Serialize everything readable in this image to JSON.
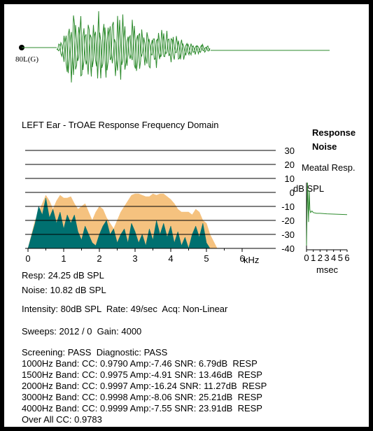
{
  "waveform": {
    "channel_label": "80L(G)",
    "response_color": "#2e8b2e",
    "noise_color": "#2e8b2e"
  },
  "title": "LEFT Ear - TrOAE Response Frequency Domain",
  "legend": {
    "response": "Response",
    "noise": "Noise",
    "response_color": "#f5c27f",
    "noise_color": "#007070"
  },
  "chart_data": [
    {
      "type": "area",
      "title": "LEFT Ear - TrOAE Response Frequency Domain",
      "xlabel": "kHz",
      "ylabel": "dB SPL",
      "xlim": [
        0,
        6
      ],
      "ylim": [
        -40,
        30
      ],
      "x_ticks": [
        "0",
        "1",
        "2",
        "3",
        "4",
        "5",
        "6"
      ],
      "y_ticks": [
        "30",
        "20",
        "10",
        "0",
        "-10",
        "-20",
        "-30",
        "-40"
      ],
      "y_axis_unit_label": "dB SPL",
      "x_axis_unit_label": "kHz",
      "legend_position": "top-right",
      "grid": true,
      "series": [
        {
          "name": "Response",
          "color": "#f5c27f",
          "x": [
            0.0,
            0.2,
            0.4,
            0.5,
            0.6,
            0.7,
            0.8,
            0.9,
            1.0,
            1.1,
            1.2,
            1.3,
            1.4,
            1.5,
            1.6,
            1.7,
            1.8,
            1.9,
            2.0,
            2.1,
            2.2,
            2.3,
            2.4,
            2.5,
            2.6,
            2.7,
            2.8,
            2.9,
            3.0,
            3.1,
            3.2,
            3.3,
            3.4,
            3.5,
            3.6,
            3.7,
            3.8,
            3.9,
            4.0,
            4.1,
            4.2,
            4.3,
            4.4,
            4.5,
            4.6,
            4.7,
            4.8,
            4.9,
            5.0,
            5.1,
            5.3
          ],
          "values": [
            -40,
            -20,
            -8,
            -2,
            -6,
            -12,
            -6,
            -2,
            -4,
            -4,
            -3,
            -8,
            -12,
            -10,
            -8,
            -14,
            -20,
            -14,
            -10,
            -12,
            -18,
            -22,
            -26,
            -20,
            -14,
            -10,
            -6,
            -2,
            -1,
            -1,
            -2,
            -3,
            -3,
            -1,
            -2,
            -1,
            -1,
            -3,
            -5,
            -8,
            -12,
            -14,
            -14,
            -14,
            -16,
            -12,
            -14,
            -20,
            -22,
            -30,
            -40
          ]
        },
        {
          "name": "Noise",
          "color": "#007070",
          "x": [
            0.0,
            0.2,
            0.3,
            0.4,
            0.5,
            0.6,
            0.7,
            0.8,
            0.9,
            1.0,
            1.1,
            1.2,
            1.3,
            1.4,
            1.5,
            1.6,
            1.7,
            1.8,
            1.9,
            2.0,
            2.1,
            2.2,
            2.3,
            2.4,
            2.5,
            2.6,
            2.7,
            2.8,
            2.9,
            3.0,
            3.1,
            3.2,
            3.3,
            3.4,
            3.5,
            3.6,
            3.7,
            3.8,
            3.9,
            4.0,
            4.1,
            4.2,
            4.3,
            4.4,
            4.5,
            4.6,
            4.7,
            4.8,
            4.9,
            5.0,
            5.1
          ],
          "values": [
            -40,
            -22,
            -10,
            -16,
            -4,
            -18,
            -12,
            -22,
            -14,
            -26,
            -16,
            -22,
            -16,
            -28,
            -34,
            -24,
            -30,
            -36,
            -38,
            -30,
            -24,
            -20,
            -30,
            -26,
            -36,
            -30,
            -26,
            -36,
            -22,
            -28,
            -36,
            -30,
            -38,
            -26,
            -34,
            -20,
            -30,
            -22,
            -32,
            -24,
            -36,
            -28,
            -38,
            -32,
            -40,
            -30,
            -24,
            -32,
            -22,
            -36,
            -40
          ]
        }
      ]
    },
    {
      "type": "line",
      "title": "Meatal Resp.",
      "xlabel": "msec",
      "x_ticks": [
        "0",
        "1",
        "2",
        "3",
        "4",
        "5",
        "6"
      ],
      "xlim": [
        0,
        6
      ],
      "series": [
        {
          "color": "#2e8b2e",
          "x": [
            0,
            0.15,
            0.3,
            0.4,
            0.5,
            0.6,
            0.8,
            1.0,
            1.5,
            2,
            3,
            4,
            5,
            6
          ],
          "values": [
            -35,
            5,
            -20,
            0,
            -12,
            -14,
            -13,
            -14,
            -14.5,
            -14.5,
            -14.8,
            -15,
            -15.2,
            -15.3
          ]
        }
      ]
    }
  ],
  "meatal": {
    "title": "Meatal Resp.",
    "xlabel": "msec"
  },
  "stats": {
    "resp": "Resp: 24.25 dB SPL",
    "noise": "Noise: 10.82 dB SPL",
    "intensity": "Intensity: 80dB SPL  Rate: 49/sec  Acq: Non-Linear",
    "sweeps": "Sweeps: 2012 / 0  Gain: 4000",
    "screening": "Screening: PASS  Diagnostic: PASS",
    "bands": [
      "1000Hz Band: CC: 0.9790 Amp:-7.46 SNR: 6.79dB  RESP",
      "1500Hz Band: CC: 0.9975 Amp:-4.91 SNR: 13.46dB  RESP",
      "2000Hz Band: CC: 0.9997 Amp:-16.24 SNR: 11.27dB  RESP",
      "3000Hz Band: CC: 0.9998 Amp:-8.06 SNR: 25.21dB  RESP",
      "4000Hz Band: CC: 0.9999 Amp:-7.55 SNR: 23.91dB  RESP"
    ],
    "overall": "Over All CC: 0.9783"
  }
}
